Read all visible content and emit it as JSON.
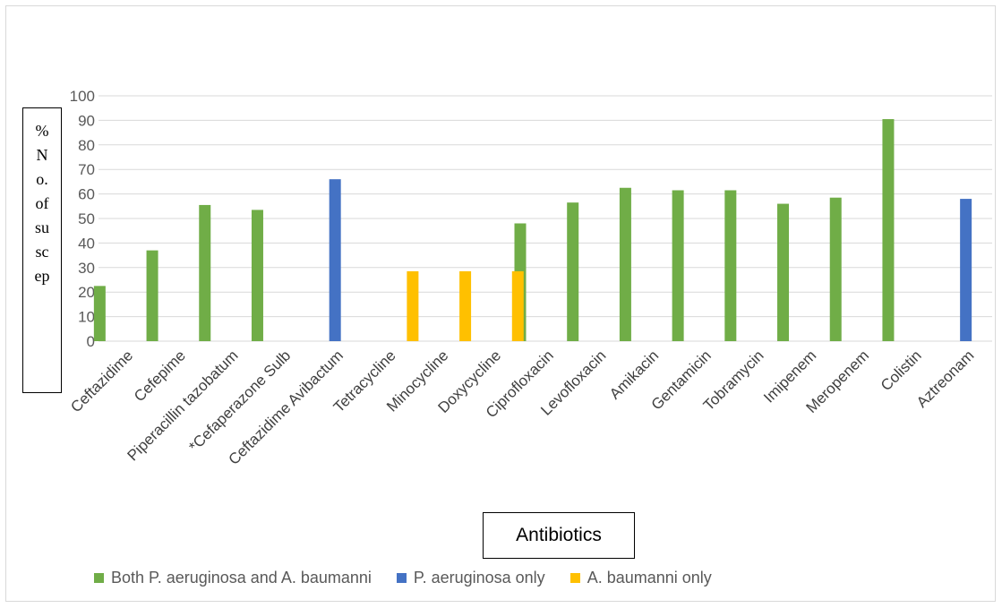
{
  "chart_data": {
    "type": "bar",
    "xlabel": "Antibiotics",
    "ylabel_lines": [
      "%",
      "N",
      "o.",
      "of",
      "su",
      "sc",
      "ep"
    ],
    "ylim": [
      0,
      100
    ],
    "yticks": [
      0,
      10,
      20,
      30,
      40,
      50,
      60,
      70,
      80,
      90,
      100
    ],
    "grid": true,
    "legend_position": "bottom",
    "categories": [
      "Ceftazidime",
      "Cefepime",
      "Piperacillin tazobatum",
      "*Cefaperazone Sulb",
      "Ceftazidime Avibactum",
      "Tetracycline",
      "Minocycline",
      "Doxycycline",
      "Ciprofloxacin",
      "Levofloxacin",
      "Amikacin",
      "Gentamicin",
      "Tobramycin",
      "Imipenem",
      "Meropenem",
      "Colistin",
      "Aztreonam"
    ],
    "series": [
      {
        "name": "Both P. aeruginosa and A. baumanni",
        "color": "#70ad47",
        "values": [
          22.5,
          37,
          55.5,
          53.5,
          null,
          null,
          null,
          null,
          48,
          56.5,
          62.5,
          61.5,
          61.5,
          56,
          58.5,
          90.5,
          null
        ]
      },
      {
        "name": "P. aeruginosa only",
        "color": "#4472c4",
        "values": [
          null,
          null,
          null,
          null,
          66,
          null,
          null,
          null,
          null,
          null,
          null,
          null,
          null,
          null,
          null,
          null,
          58
        ]
      },
      {
        "name": "A. baumanni only",
        "color": "#ffc000",
        "values": [
          null,
          null,
          null,
          null,
          null,
          28.5,
          28.5,
          28.5,
          null,
          null,
          null,
          null,
          null,
          null,
          null,
          null,
          null
        ]
      }
    ]
  }
}
